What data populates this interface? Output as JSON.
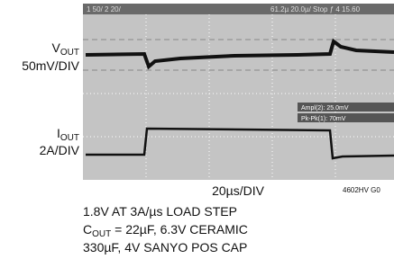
{
  "scope": {
    "header_left": "1  50/  2  20/",
    "header_right": "61.2µ  20.0µ/  Stop  ƒ 4  15.60",
    "readouts": [
      "Ampl(2): 25.0mV",
      "Pk-Pk(1): 70mV"
    ]
  },
  "labels": [
    {
      "main": "V",
      "sub": "OUT",
      "scale": "50mV/DIV"
    },
    {
      "main": "I",
      "sub": "OUT",
      "scale": "2A/DIV"
    }
  ],
  "time_scale": "20µs/DIV",
  "figure_id": "4602HV G0",
  "caption": [
    {
      "text": "1.8V AT 3A/µs LOAD STEP"
    },
    {
      "main": "C",
      "sub": "OUT",
      "rest": " = 22µF, 6.3V CERAMIC"
    },
    {
      "text": "330µF, 4V SANYO POS CAP"
    }
  ]
}
